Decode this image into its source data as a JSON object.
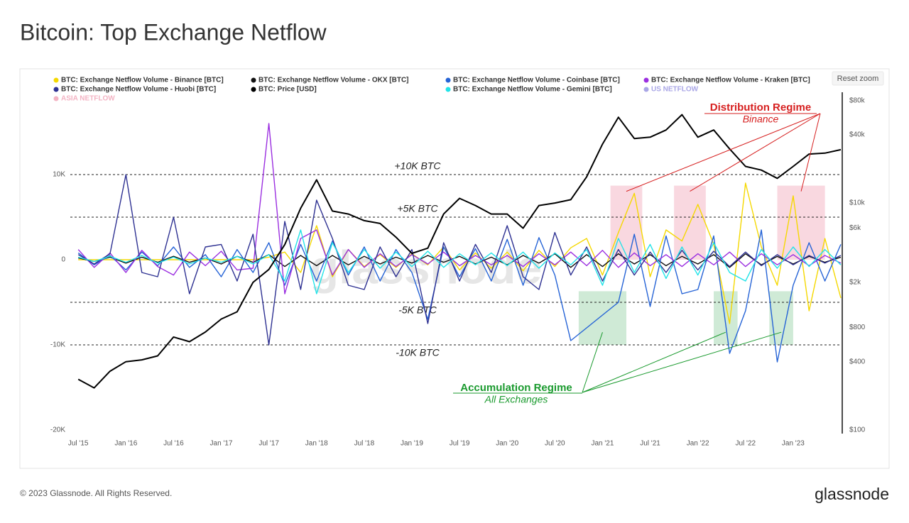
{
  "chart_data": {
    "type": "line",
    "title": "Bitcoin: Top Exchange Netflow",
    "x": [
      "2015-07",
      "2015-09",
      "2015-11",
      "2016-01",
      "2016-03",
      "2016-05",
      "2016-07",
      "2016-09",
      "2016-11",
      "2017-01",
      "2017-03",
      "2017-05",
      "2017-07",
      "2017-09",
      "2017-11",
      "2018-01",
      "2018-03",
      "2018-05",
      "2018-07",
      "2018-09",
      "2018-11",
      "2019-01",
      "2019-03",
      "2019-05",
      "2019-07",
      "2019-09",
      "2019-11",
      "2020-01",
      "2020-03",
      "2020-05",
      "2020-07",
      "2020-09",
      "2020-11",
      "2021-01",
      "2021-03",
      "2021-05",
      "2021-07",
      "2021-09",
      "2021-11",
      "2022-01",
      "2022-03",
      "2022-05",
      "2022-07",
      "2022-09",
      "2022-11",
      "2023-01",
      "2023-03",
      "2023-05",
      "2023-07"
    ],
    "xlim": [
      "2015-06",
      "2023-07"
    ],
    "xticks": [
      {
        "value": "2015-07",
        "label": "Jul '15"
      },
      {
        "value": "2016-01",
        "label": "Jan '16"
      },
      {
        "value": "2016-07",
        "label": "Jul '16"
      },
      {
        "value": "2017-01",
        "label": "Jan '17"
      },
      {
        "value": "2017-07",
        "label": "Jul '17"
      },
      {
        "value": "2018-01",
        "label": "Jan '18"
      },
      {
        "value": "2018-07",
        "label": "Jul '18"
      },
      {
        "value": "2019-01",
        "label": "Jan '19"
      },
      {
        "value": "2019-07",
        "label": "Jul '19"
      },
      {
        "value": "2020-01",
        "label": "Jan '20"
      },
      {
        "value": "2020-07",
        "label": "Jul '20"
      },
      {
        "value": "2021-01",
        "label": "Jan '21"
      },
      {
        "value": "2021-07",
        "label": "Jul '21"
      },
      {
        "value": "2022-01",
        "label": "Jan '22"
      },
      {
        "value": "2022-07",
        "label": "Jul '22"
      },
      {
        "value": "2023-01",
        "label": "Jan '23"
      }
    ],
    "ylim": [
      -20000,
      19250
    ],
    "yticks": [
      {
        "value": 10000,
        "label": "10K"
      },
      0,
      {
        "value": -10000,
        "label": "-10K"
      },
      {
        "value": -20000,
        "label": "-20K"
      }
    ],
    "y2lim": [
      100,
      88000
    ],
    "y2_log": true,
    "y2ticks": [
      {
        "value": 80000,
        "label": "$80k"
      },
      {
        "value": 40000,
        "label": "$40k"
      },
      {
        "value": 10000,
        "label": "$10k"
      },
      {
        "value": 6000,
        "label": "$6k"
      },
      {
        "value": 2000,
        "label": "$2k"
      },
      {
        "value": 800,
        "label": "$800"
      },
      {
        "value": 400,
        "label": "$400"
      },
      {
        "value": 100,
        "label": "$100"
      }
    ],
    "grid": false,
    "series": [
      {
        "name": "BTC: Exchange Netflow Volume - Binance [BTC]",
        "color": "#f5d800",
        "values": [
          0,
          0,
          0,
          0,
          0,
          0,
          0,
          0,
          0,
          0,
          0,
          0,
          300,
          900,
          -1500,
          4000,
          -2000,
          1200,
          -800,
          600,
          -900,
          700,
          -600,
          1500,
          -1200,
          800,
          -1000,
          900,
          -1300,
          1100,
          -800,
          1400,
          2500,
          -1800,
          3200,
          7800,
          -2000,
          3500,
          2200,
          6500,
          1800,
          -7500,
          9000,
          1500,
          -3000,
          7500,
          -6000,
          2500,
          -4500
        ]
      },
      {
        "name": "BTC: Exchange Netflow Volume - OKX [BTC]",
        "color": "#111111",
        "values": [
          200,
          -200,
          300,
          -400,
          300,
          -300,
          400,
          -300,
          200,
          -500,
          400,
          -300,
          600,
          -800,
          500,
          -700,
          500,
          -600,
          400,
          -500,
          300,
          -400,
          500,
          -300,
          400,
          -500,
          300,
          -600,
          500,
          -400,
          700,
          -900,
          600,
          -800,
          700,
          -500,
          600,
          -700,
          400,
          -500,
          600,
          -900,
          700,
          -600,
          400,
          -500,
          400,
          -300,
          300
        ]
      },
      {
        "name": "BTC: Exchange Netflow Volume - Coinbase [BTC]",
        "color": "#2563d6",
        "values": [
          800,
          -600,
          500,
          -1200,
          900,
          -700,
          1500,
          -900,
          600,
          -2000,
          1200,
          -1500,
          2000,
          -3000,
          1800,
          -2500,
          2200,
          -1800,
          1500,
          -2500,
          1200,
          -1500,
          -7000,
          1500,
          -2000,
          1300,
          -2500,
          2400,
          -3000,
          2600,
          -1800,
          -9500,
          -8000,
          -6500,
          -5000,
          3000,
          -5500,
          2800,
          -4000,
          -3500,
          2800,
          -11000,
          -6000,
          3500,
          -12000,
          -3000,
          2000,
          -2500,
          1800
        ]
      },
      {
        "name": "BTC: Exchange Netflow Volume - Kraken [BTC]",
        "color": "#9b2fe0",
        "values": [
          1200,
          -900,
          800,
          -1500,
          1100,
          -800,
          -1800,
          900,
          -700,
          1000,
          -1200,
          -1000,
          16000,
          -4000,
          2500,
          3500,
          -1800,
          1200,
          -900,
          700,
          -800,
          600,
          -500,
          900,
          -700,
          500,
          -600,
          500,
          -800,
          700,
          -600,
          900,
          -700,
          1100,
          -900,
          800,
          -700,
          600,
          -800,
          700,
          -600,
          900,
          -800,
          700,
          -600,
          600,
          -700,
          500,
          -400
        ]
      },
      {
        "name": "BTC: Exchange Netflow Volume - Huobi [BTC]",
        "color": "#2e3192",
        "values": [
          600,
          -500,
          700,
          10000,
          -1500,
          -2000,
          5000,
          -4000,
          1500,
          1800,
          -2500,
          3000,
          -10000,
          4500,
          -3500,
          7000,
          2500,
          -3000,
          -3500,
          1500,
          -2000,
          1200,
          -7500,
          2000,
          -2500,
          1800,
          -1500,
          4000,
          -2000,
          -3500,
          3200,
          -1800,
          1500,
          -2500,
          1200,
          -1800,
          900,
          -1500,
          1100,
          -1200,
          1000,
          -800,
          900,
          -700,
          600,
          -600,
          500,
          -400,
          500
        ]
      },
      {
        "name": "BTC: Price [USD]",
        "color": "#000000",
        "axis": "y2",
        "values": [
          280,
          235,
          330,
          400,
          415,
          450,
          660,
          600,
          730,
          950,
          1100,
          2000,
          2600,
          4300,
          9000,
          16000,
          8500,
          8000,
          7000,
          6600,
          5000,
          3600,
          4000,
          8000,
          11000,
          9500,
          8000,
          8000,
          6000,
          9500,
          10000,
          10700,
          17000,
          33000,
          57000,
          37000,
          38000,
          44000,
          60000,
          38000,
          44000,
          30000,
          21000,
          19500,
          16500,
          21000,
          27000,
          27500,
          29500
        ]
      },
      {
        "name": "BTC: Exchange Netflow Volume - Gemini [BTC]",
        "color": "#22e3e8",
        "values": [
          300,
          -200,
          400,
          -300,
          500,
          -400,
          300,
          -500,
          200,
          -300,
          400,
          -500,
          600,
          -2500,
          3500,
          -4000,
          2000,
          -1500,
          1200,
          -1000,
          900,
          -800,
          1000,
          -900,
          700,
          -600,
          800,
          -700,
          900,
          -1000,
          800,
          -600,
          1200,
          -3000,
          2500,
          -1500,
          1800,
          -2200,
          1500,
          -1800,
          2000,
          -1500,
          -2500,
          1200,
          -1000,
          1500,
          -800,
          1200,
          -600
        ]
      }
    ],
    "inactive_series": [
      {
        "name": "US NETFLOW",
        "color": "#a9a6e6"
      },
      {
        "name": "ASIA NETFLOW",
        "color": "#f3b3c3"
      }
    ],
    "reference_lines": [
      {
        "value": 10000,
        "label": "+10K BTC"
      },
      {
        "value": 5000,
        "label": "+5K BTC"
      },
      {
        "value": -5000,
        "label": "-5K BTC"
      },
      {
        "value": -10000,
        "label": "-10K BTC"
      }
    ],
    "annotations": [
      {
        "label": "Distribution Regime",
        "sublabel": "Binance",
        "color": "#d61f1f",
        "fill": "#f7cbd6",
        "regions": [
          {
            "x": [
              "2021-02",
              "2021-06"
            ],
            "y": [
              0,
              8700
            ]
          },
          {
            "x": [
              "2021-10",
              "2022-02"
            ],
            "y": [
              0,
              8700
            ]
          },
          {
            "x": [
              "2022-11",
              "2023-05"
            ],
            "y": [
              0,
              8700
            ]
          }
        ]
      },
      {
        "label": "Accumulation Regime",
        "sublabel": "All Exchanges",
        "color": "#1a9a2e",
        "fill": "#bfe3c8",
        "regions": [
          {
            "x": [
              "2020-10",
              "2021-04"
            ],
            "y": [
              -10000,
              -3700
            ]
          },
          {
            "x": [
              "2022-03",
              "2022-06"
            ],
            "y": [
              -10000,
              -3700
            ]
          },
          {
            "x": [
              "2022-10",
              "2023-01"
            ],
            "y": [
              -10000,
              -3700
            ]
          }
        ]
      }
    ]
  },
  "reset_zoom": "Reset zoom",
  "watermark": "glassnode",
  "copyright": "© 2023 Glassnode. All Rights Reserved.",
  "brand": "glassnode"
}
